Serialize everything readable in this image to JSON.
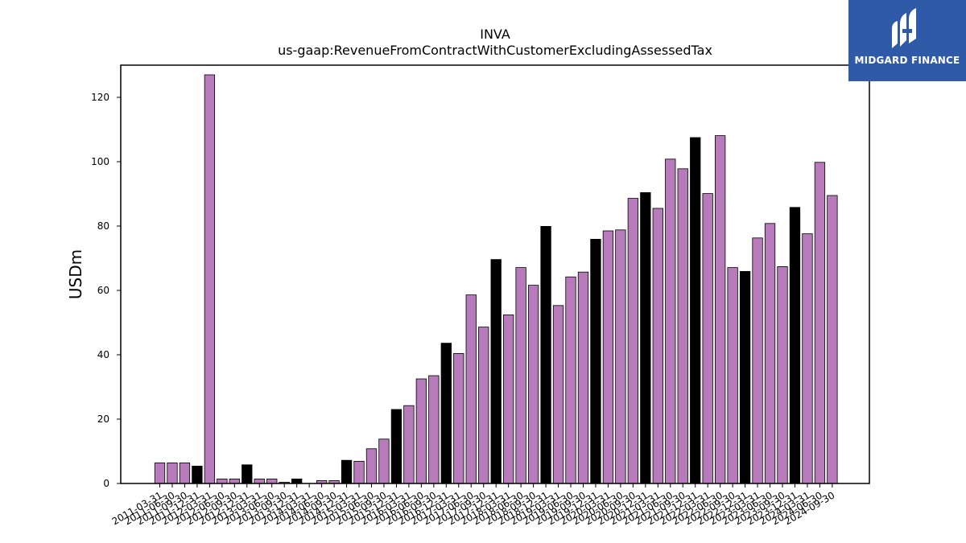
{
  "logo": {
    "text": "MIDGARD FINANCE",
    "icon": "midgard-logo-icon",
    "bg_color": "#2f5aa8"
  },
  "chart_data": {
    "type": "bar",
    "title": "INVA",
    "subtitle": "us-gaap:RevenueFromContractWithCustomerExcludingAssessedTax",
    "xlabel": "",
    "ylabel": "USDm",
    "ylim": [
      0,
      130
    ],
    "yticks": [
      0,
      20,
      40,
      60,
      80,
      100,
      120
    ],
    "grid": false,
    "colors": {
      "quarter": "#b77bbb",
      "year_end": "#000000"
    },
    "categories": [
      "2011-03-31",
      "2011-06-30",
      "2011-09-30",
      "2011-12-31",
      "2012-03-31",
      "2012-06-30",
      "2012-09-30",
      "2012-12-31",
      "2013-03-31",
      "2013-06-30",
      "2013-09-30",
      "2013-12-31",
      "2014-03-31",
      "2014-06-30",
      "2014-09-30",
      "2014-12-31",
      "2015-03-31",
      "2015-06-30",
      "2015-09-30",
      "2015-12-31",
      "2016-03-31",
      "2016-06-30",
      "2016-09-30",
      "2016-12-31",
      "2017-03-31",
      "2017-06-30",
      "2017-09-30",
      "2017-12-31",
      "2018-03-31",
      "2018-06-30",
      "2018-09-30",
      "2018-12-31",
      "2019-03-31",
      "2019-06-30",
      "2019-09-30",
      "2019-12-31",
      "2020-03-31",
      "2020-06-30",
      "2020-09-30",
      "2020-12-31",
      "2021-03-31",
      "2021-06-30",
      "2021-09-30",
      "2021-12-31",
      "2022-03-31",
      "2022-06-30",
      "2022-09-30",
      "2022-12-31",
      "2023-03-31",
      "2023-06-30",
      "2023-09-30",
      "2023-12-31",
      "2024-03-31",
      "2024-06-30",
      "2024-09-30"
    ],
    "values": [
      6.4,
      6.4,
      6.4,
      5.4,
      127.0,
      1.4,
      1.4,
      5.8,
      1.4,
      1.4,
      0.4,
      1.4,
      0.0,
      0.9,
      0.9,
      7.2,
      6.9,
      10.8,
      13.8,
      23.0,
      24.2,
      32.5,
      33.5,
      43.6,
      40.4,
      58.6,
      48.6,
      69.6,
      52.4,
      67.1,
      61.6,
      79.9,
      55.3,
      64.2,
      65.7,
      75.9,
      78.5,
      78.8,
      88.6,
      90.4,
      85.5,
      100.8,
      97.8,
      107.5,
      90.1,
      108.1,
      67.1,
      65.9,
      76.3,
      80.8,
      67.4,
      85.8,
      77.6,
      99.8,
      89.5
    ],
    "year_end_flags": [
      false,
      false,
      false,
      true,
      false,
      false,
      false,
      true,
      false,
      false,
      false,
      true,
      false,
      false,
      false,
      true,
      false,
      false,
      false,
      true,
      false,
      false,
      false,
      true,
      false,
      false,
      false,
      true,
      false,
      false,
      false,
      true,
      false,
      false,
      false,
      true,
      false,
      false,
      false,
      true,
      false,
      false,
      false,
      true,
      false,
      false,
      false,
      true,
      false,
      false,
      false,
      true,
      false,
      false,
      false
    ]
  }
}
